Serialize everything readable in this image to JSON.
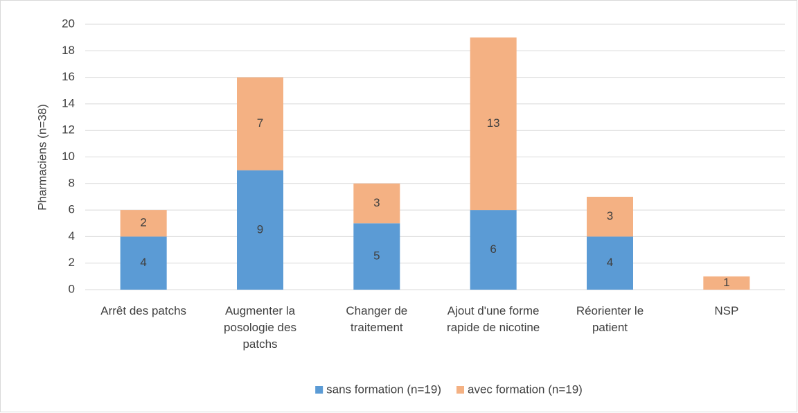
{
  "chart_data": {
    "type": "stacked_bar",
    "y_label": "Pharmaciens (n=38)",
    "categories": [
      "Arrêt des patchs",
      "Augmenter la posologie des patchs",
      "Changer de traitement",
      "Ajout d'une forme rapide de nicotine",
      "Réorienter le patient",
      "NSP"
    ],
    "series": [
      {
        "name": "sans formation (n=19)",
        "color": "#5b9bd5",
        "values": [
          4,
          9,
          5,
          6,
          4,
          0
        ]
      },
      {
        "name": "avec formation (n=19)",
        "color": "#f4b183",
        "values": [
          2,
          7,
          3,
          13,
          3,
          1
        ]
      }
    ],
    "ylim": [
      0,
      20
    ],
    "yticks": [
      0,
      2,
      4,
      6,
      8,
      10,
      12,
      14,
      16,
      18,
      20
    ],
    "grid": true,
    "legend": "bottom"
  }
}
